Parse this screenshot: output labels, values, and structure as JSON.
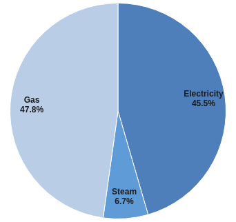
{
  "chart_data": {
    "type": "pie",
    "categories": [
      "Electricity",
      "Steam",
      "Gas"
    ],
    "values": [
      45.5,
      6.7,
      47.8
    ],
    "value_labels": [
      "45.5%",
      "6.7%",
      "47.8%"
    ],
    "colors": [
      "#4f7fba",
      "#5f9bd6",
      "#b9cde6"
    ],
    "data_labels": true
  }
}
